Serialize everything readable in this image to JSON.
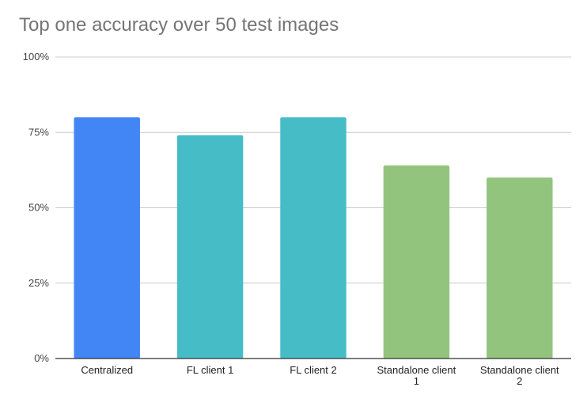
{
  "chart_data": {
    "type": "bar",
    "title": "Top one accuracy over 50 test images",
    "categories": [
      "Centralized",
      "FL client 1",
      "FL client 2",
      "Standalone client 1",
      "Standalone client 2"
    ],
    "category_label_lines": [
      [
        "Centralized"
      ],
      [
        "FL client 1"
      ],
      [
        "FL client 2"
      ],
      [
        "Standalone client",
        "1"
      ],
      [
        "Standalone client",
        "2"
      ]
    ],
    "values": [
      80,
      74,
      80,
      64,
      60
    ],
    "bar_colors": [
      "#4285f4",
      "#46bdc6",
      "#46bdc6",
      "#93c47d",
      "#93c47d"
    ],
    "ylim": [
      0,
      100
    ],
    "yticks": [
      0,
      25,
      50,
      75,
      100
    ],
    "ytick_labels": [
      "0%",
      "25%",
      "50%",
      "75%",
      "100%"
    ],
    "grid": true,
    "legend": "none",
    "colors": {
      "grid": "#cccccc",
      "axis": "#333333",
      "title": "#757575"
    }
  }
}
